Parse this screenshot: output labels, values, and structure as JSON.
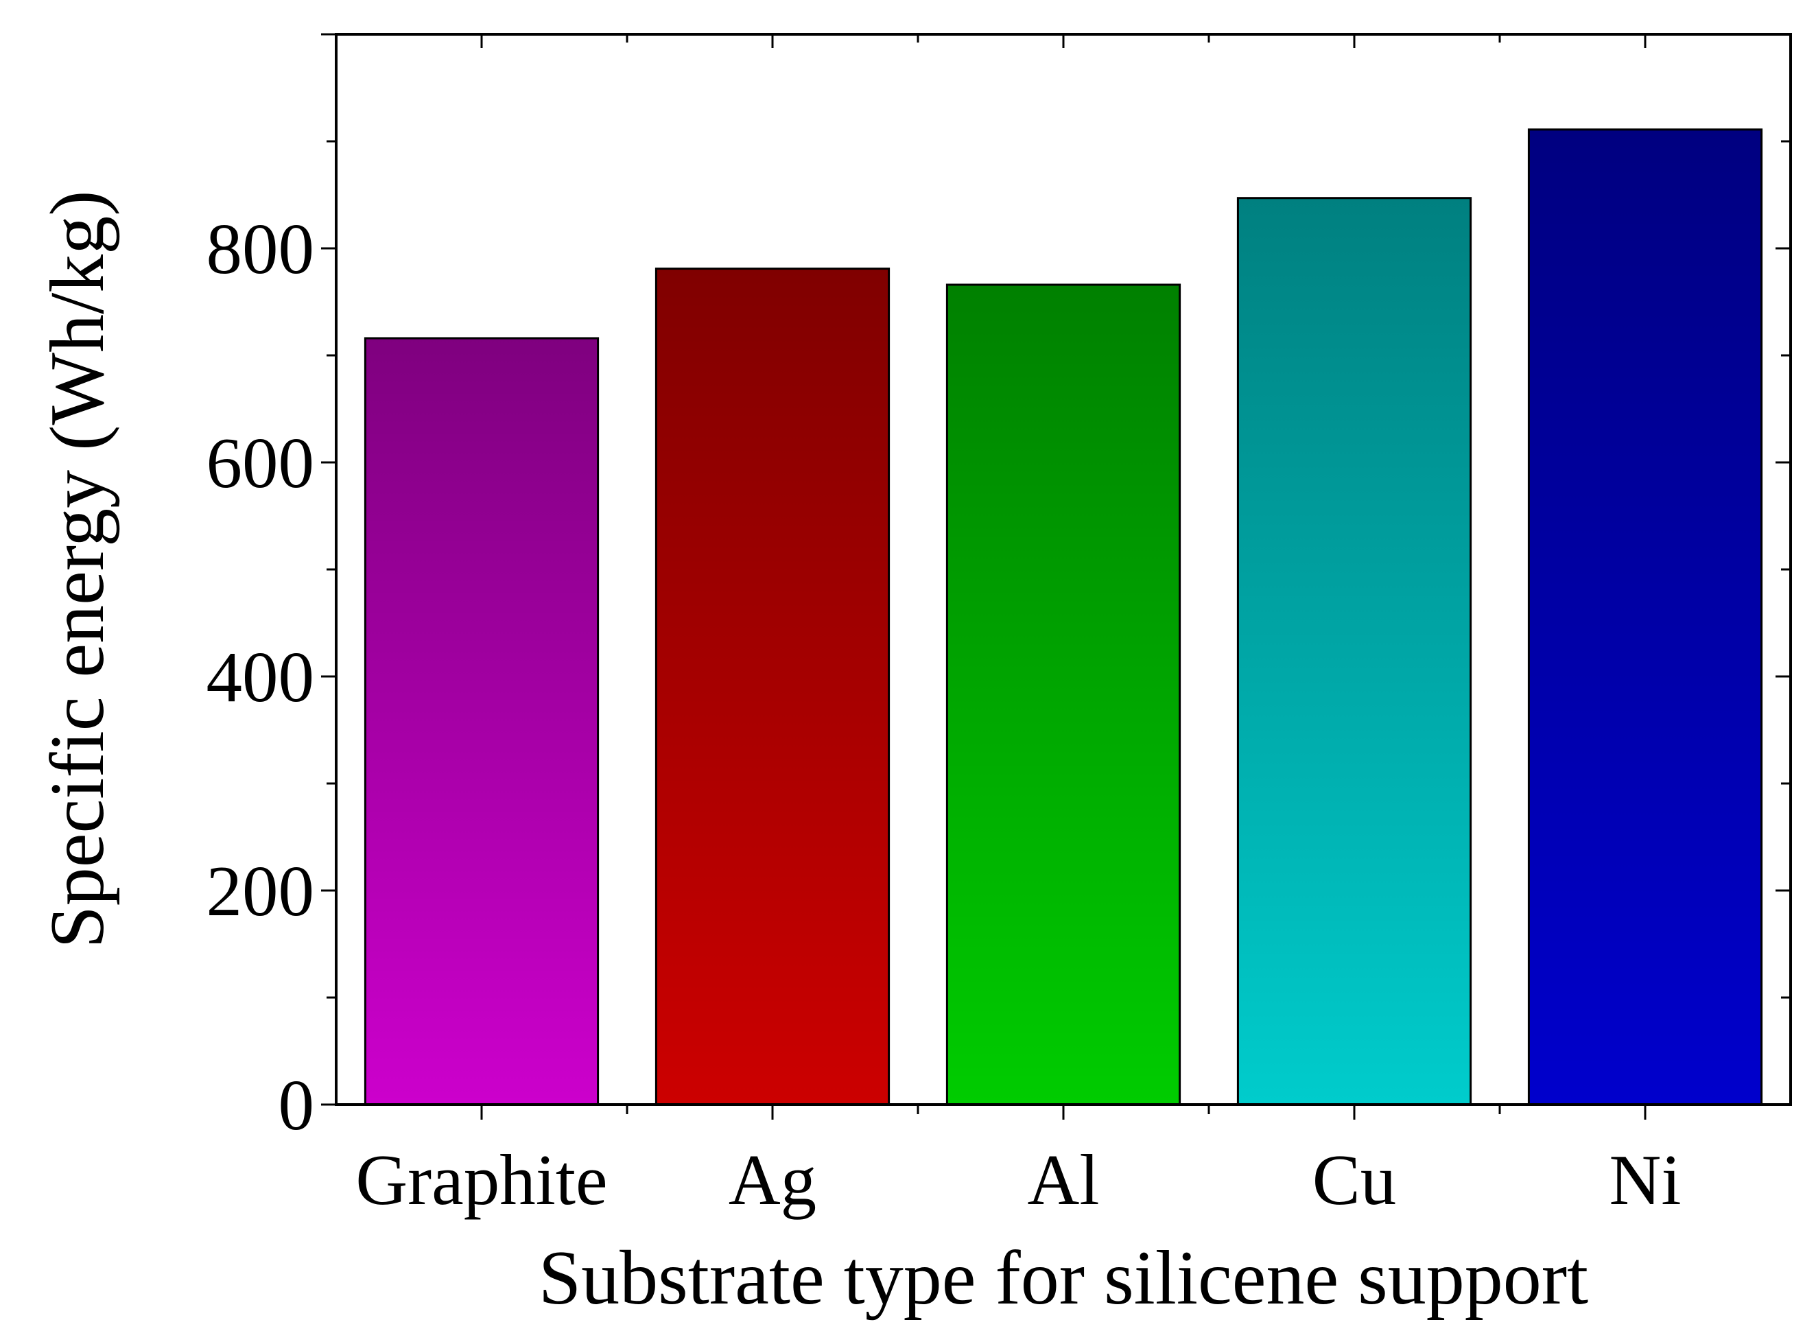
{
  "chart_data": {
    "type": "bar",
    "title": "",
    "xlabel": "Substrate type for silicene support",
    "ylabel": "Specific energy (Wh/kg)",
    "categories": [
      "Graphite",
      "Ag",
      "Al",
      "Cu",
      "Ni"
    ],
    "values": [
      716,
      781,
      766,
      847,
      911
    ],
    "ylim": [
      0,
      1000
    ],
    "yticks": [
      0,
      200,
      400,
      600,
      800
    ],
    "ytick_labels": [
      "0",
      "200",
      "400",
      "600",
      "800"
    ],
    "grid": false,
    "legend": "none",
    "bar_colors": [
      {
        "top": "#7f007f",
        "bottom": "#cc00cc"
      },
      {
        "top": "#800000",
        "bottom": "#cc0000"
      },
      {
        "top": "#008000",
        "bottom": "#00cc00"
      },
      {
        "top": "#008080",
        "bottom": "#00cccc"
      },
      {
        "top": "#000080",
        "bottom": "#0000cc"
      }
    ]
  }
}
